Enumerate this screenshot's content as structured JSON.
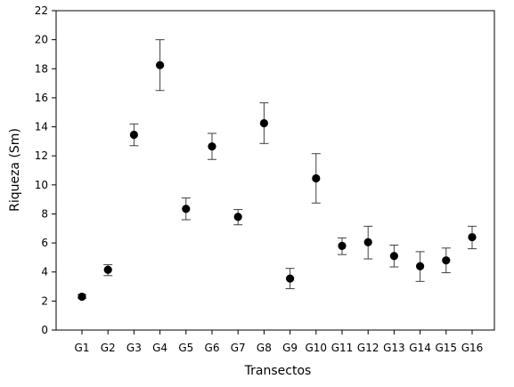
{
  "chart_data": {
    "type": "scatter",
    "title": "",
    "xlabel": "Transectos",
    "ylabel": "Riqueza (Sm)",
    "categories": [
      "G1",
      "G2",
      "G3",
      "G4",
      "G5",
      "G6",
      "G7",
      "G8",
      "G9",
      "G10",
      "G11",
      "G12",
      "G13",
      "G14",
      "G15",
      "G16"
    ],
    "values": [
      2.3,
      4.15,
      13.45,
      18.25,
      8.35,
      12.65,
      7.8,
      14.25,
      3.55,
      10.45,
      5.8,
      6.05,
      5.1,
      4.4,
      4.8,
      6.4
    ],
    "error_low": [
      2.2,
      3.75,
      12.7,
      16.5,
      7.6,
      11.75,
      7.25,
      12.85,
      2.85,
      8.75,
      5.2,
      4.9,
      4.35,
      3.35,
      3.95,
      5.6
    ],
    "error_high": [
      2.45,
      4.5,
      14.2,
      20.0,
      9.1,
      13.55,
      8.3,
      15.65,
      4.25,
      12.15,
      6.35,
      7.15,
      5.85,
      5.4,
      5.65,
      7.15
    ],
    "ylim": [
      0,
      22
    ],
    "yticks": [
      0,
      2,
      4,
      6,
      8,
      10,
      12,
      14,
      16,
      18,
      20,
      22
    ],
    "grid": false,
    "colors": {
      "marker": "#000000",
      "axis": "#000000",
      "errorbar": "#404040"
    }
  }
}
